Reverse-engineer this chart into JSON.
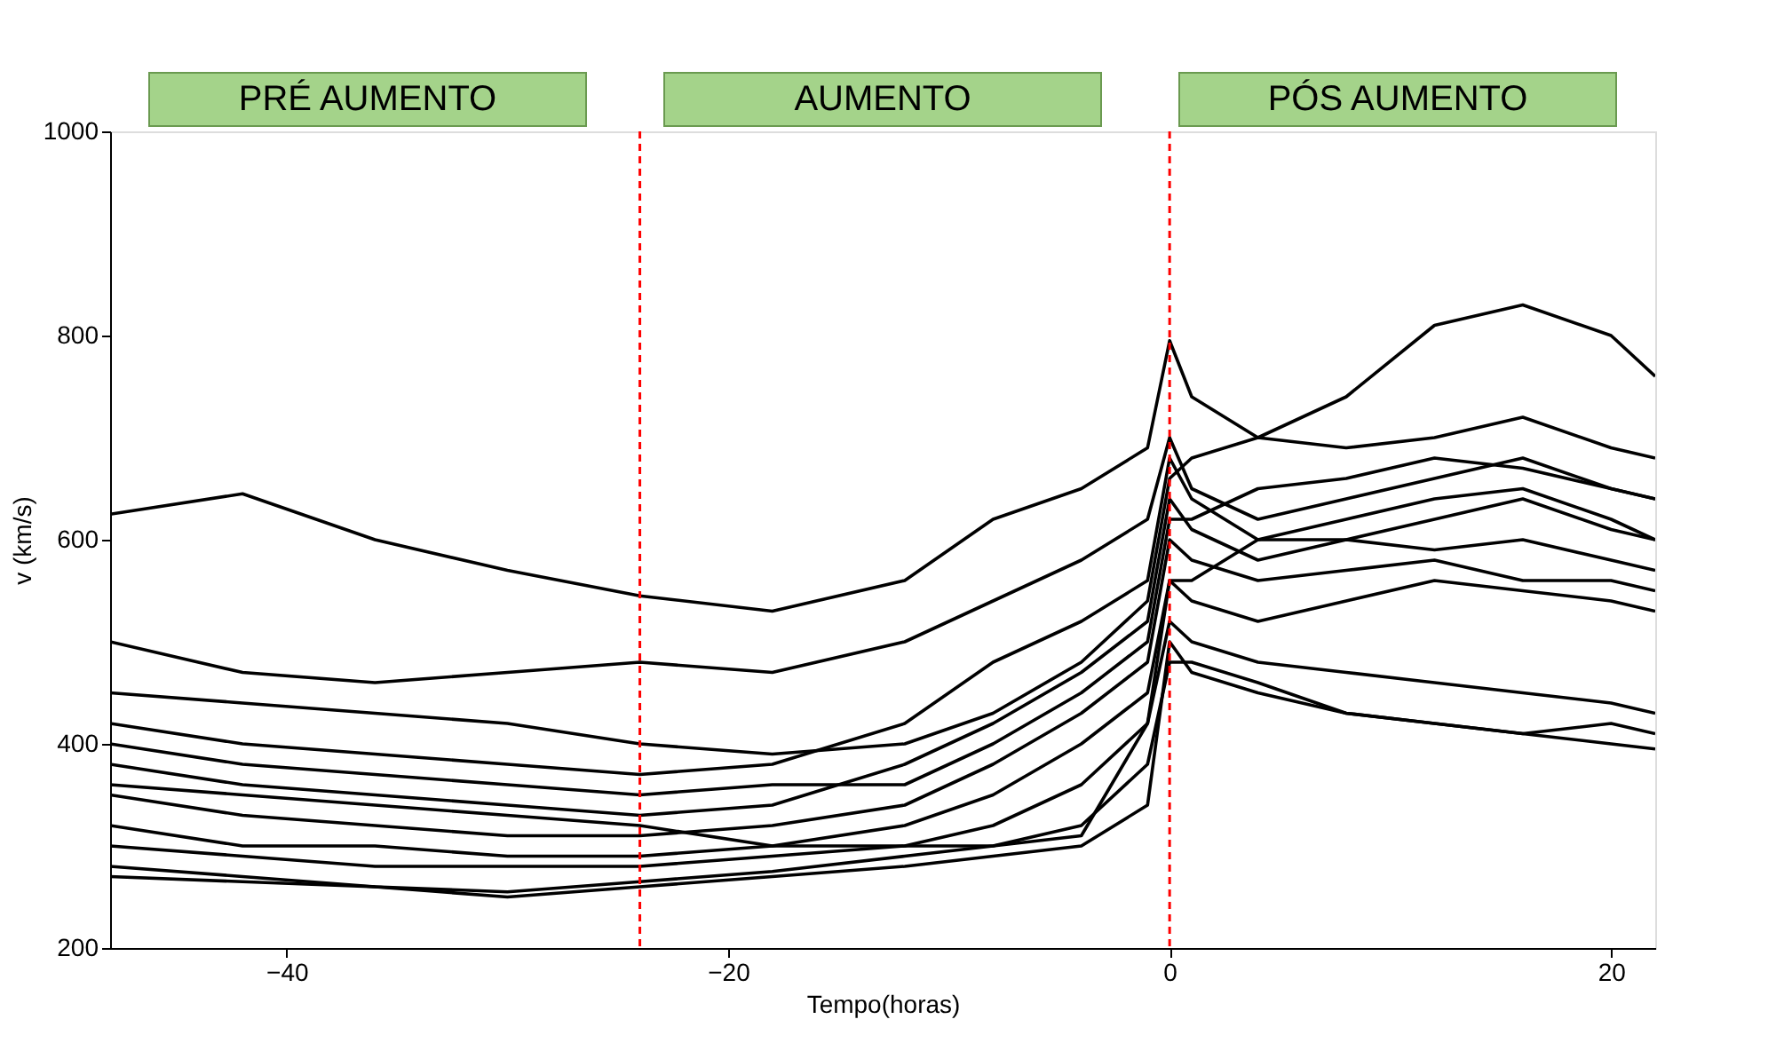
{
  "chart_data": {
    "type": "line",
    "xlabel": "Tempo(horas)",
    "ylabel": "v (km/s)",
    "annotations": [
      "PRÉ AUMENTO",
      "AUMENTO",
      "PÓS AUMENTO"
    ],
    "x": [
      -48,
      -42,
      -36,
      -30,
      -24,
      -18,
      -12,
      -8,
      -4,
      -1,
      0,
      1,
      4,
      8,
      12,
      16,
      20,
      22
    ],
    "xlim": [
      -48,
      22
    ],
    "xticks": [
      -40,
      -20,
      0,
      20
    ],
    "ylim": [
      200,
      1000
    ],
    "yticks": [
      200,
      400,
      600,
      800,
      1000
    ],
    "grid": false,
    "legend": false,
    "marker": "none",
    "line_style": "solid",
    "ref_lines": [
      {
        "axis": "x",
        "value": -24,
        "color": "#ff0000",
        "line_style": "dashed"
      },
      {
        "axis": "x",
        "value": 0,
        "color": "#ff0000",
        "line_style": "dashed"
      }
    ],
    "series": [
      {
        "color": "#000000",
        "values": [
          625,
          645,
          600,
          570,
          545,
          530,
          560,
          620,
          650,
          690,
          795,
          740,
          700,
          740,
          810,
          830,
          800,
          760
        ]
      },
      {
        "color": "#000000",
        "values": [
          500,
          470,
          460,
          470,
          480,
          470,
          500,
          540,
          580,
          620,
          700,
          650,
          620,
          640,
          660,
          680,
          650,
          640
        ]
      },
      {
        "color": "#000000",
        "values": [
          420,
          400,
          390,
          380,
          370,
          380,
          420,
          480,
          520,
          560,
          680,
          640,
          600,
          600,
          620,
          640,
          610,
          600
        ]
      },
      {
        "color": "#000000",
        "values": [
          380,
          360,
          350,
          340,
          330,
          340,
          380,
          420,
          470,
          520,
          640,
          610,
          580,
          600,
          590,
          600,
          580,
          570
        ]
      },
      {
        "color": "#000000",
        "values": [
          350,
          330,
          320,
          310,
          310,
          320,
          340,
          380,
          430,
          480,
          600,
          580,
          560,
          570,
          580,
          560,
          560,
          550
        ]
      },
      {
        "color": "#000000",
        "values": [
          320,
          300,
          300,
          290,
          290,
          300,
          320,
          350,
          400,
          450,
          560,
          540,
          520,
          540,
          560,
          550,
          540,
          530
        ]
      },
      {
        "color": "#000000",
        "values": [
          300,
          290,
          280,
          280,
          280,
          290,
          300,
          320,
          360,
          420,
          520,
          500,
          480,
          470,
          460,
          450,
          440,
          430
        ]
      },
      {
        "color": "#000000",
        "values": [
          280,
          270,
          260,
          255,
          265,
          275,
          290,
          300,
          320,
          380,
          480,
          480,
          460,
          430,
          420,
          410,
          400,
          395
        ]
      },
      {
        "color": "#000000",
        "values": [
          450,
          440,
          430,
          420,
          400,
          390,
          400,
          430,
          480,
          540,
          660,
          680,
          700,
          690,
          700,
          720,
          690,
          680
        ]
      },
      {
        "color": "#000000",
        "values": [
          360,
          350,
          340,
          330,
          320,
          300,
          300,
          300,
          310,
          420,
          560,
          560,
          600,
          620,
          640,
          650,
          620,
          600
        ]
      },
      {
        "color": "#000000",
        "values": [
          270,
          265,
          260,
          250,
          260,
          270,
          280,
          290,
          300,
          340,
          500,
          470,
          450,
          430,
          420,
          410,
          420,
          410
        ]
      },
      {
        "color": "#000000",
        "values": [
          400,
          380,
          370,
          360,
          350,
          360,
          360,
          400,
          450,
          500,
          620,
          620,
          650,
          660,
          680,
          670,
          650,
          640
        ]
      }
    ]
  }
}
